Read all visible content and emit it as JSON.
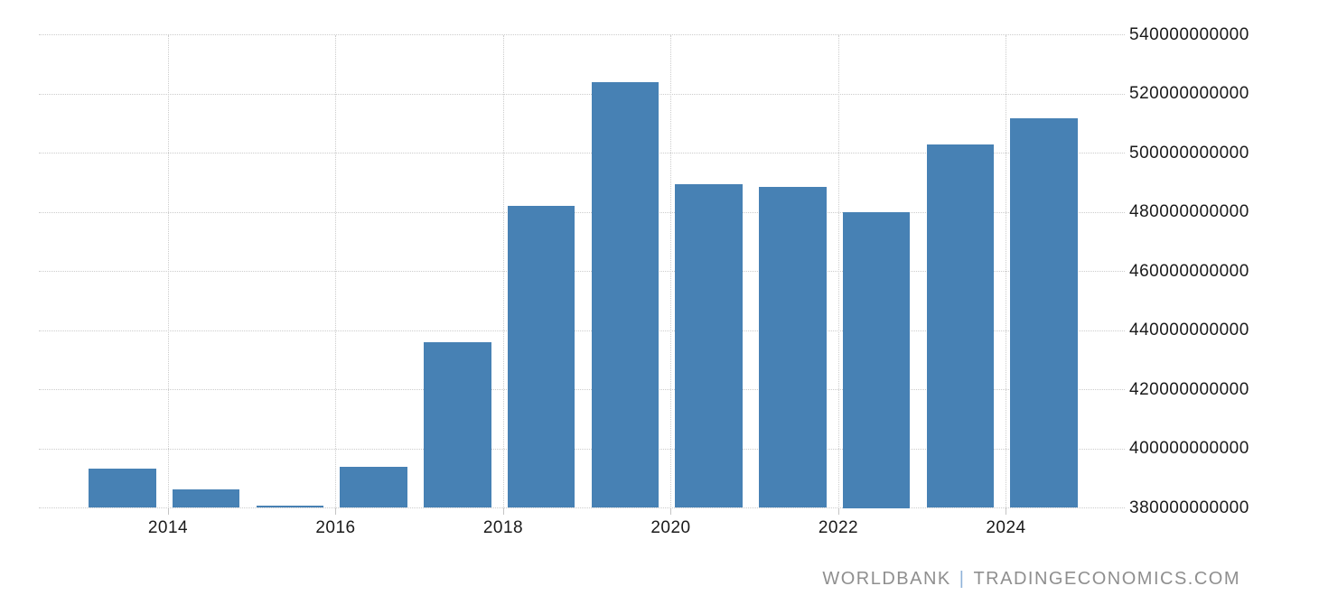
{
  "watermark": {
    "left": "WORLDBANK",
    "separator": "|",
    "right": "TRADINGECONOMICS.COM"
  },
  "colors": {
    "bar": "#4781b4",
    "grid": "#cccccc",
    "axis_text": "#1a1a1a",
    "watermark_text": "#8f8f8f",
    "watermark_separator": "#8fb2d9",
    "background": "#ffffff"
  },
  "chart_data": {
    "type": "bar",
    "title": "",
    "xlabel": "",
    "ylabel": "",
    "categories": [
      "2013",
      "2014",
      "2015",
      "2016",
      "2017",
      "2018",
      "2019",
      "2020",
      "2021",
      "2022",
      "2023",
      "2024"
    ],
    "values": [
      393300000000,
      386400000000,
      380800000000,
      393900000000,
      436000000000,
      482100000000,
      524000000000,
      489500000000,
      488600000000,
      480000000000,
      502900000000,
      511700000000
    ],
    "x_tick_labels": [
      "2014",
      "2016",
      "2018",
      "2020",
      "2022",
      "2024"
    ],
    "y_ticks": [
      380000000000,
      400000000000,
      420000000000,
      440000000000,
      460000000000,
      480000000000,
      500000000000,
      520000000000,
      540000000000
    ],
    "ylim": [
      380000000000,
      548700000000
    ],
    "grid": true,
    "legend": false,
    "y_axis_side": "right",
    "source": "WORLDBANK | TRADINGECONOMICS.COM"
  }
}
